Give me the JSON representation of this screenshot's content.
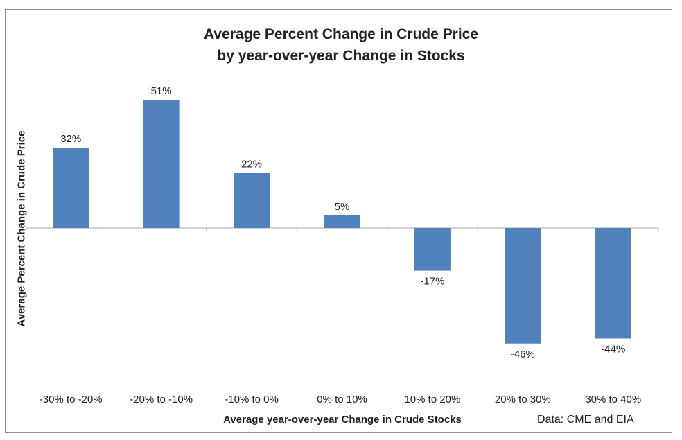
{
  "chart_data": {
    "type": "bar",
    "title_lines": [
      "Average Percent Change in Crude Price",
      "by year-over-year Change in Stocks"
    ],
    "xlabel": "Average year-over-year Change in Crude Stocks",
    "ylabel": "Average Percent Change in Crude Price",
    "source": "Data: CME and EIA",
    "categories": [
      "-30% to -20%",
      "-20% to -10%",
      "-10% to 0%",
      "0% to 10%",
      "10% to 20%",
      "20% to 30%",
      "30% to 40%"
    ],
    "values": [
      32,
      51,
      22,
      5,
      -17,
      -46,
      -44
    ],
    "data_labels": [
      "32%",
      "51%",
      "22%",
      "5%",
      "-17%",
      "-46%",
      "-44%"
    ],
    "bar_color": "#4f81bd",
    "axis_color": "#a6a6a6",
    "grid": false,
    "legend": "none"
  }
}
